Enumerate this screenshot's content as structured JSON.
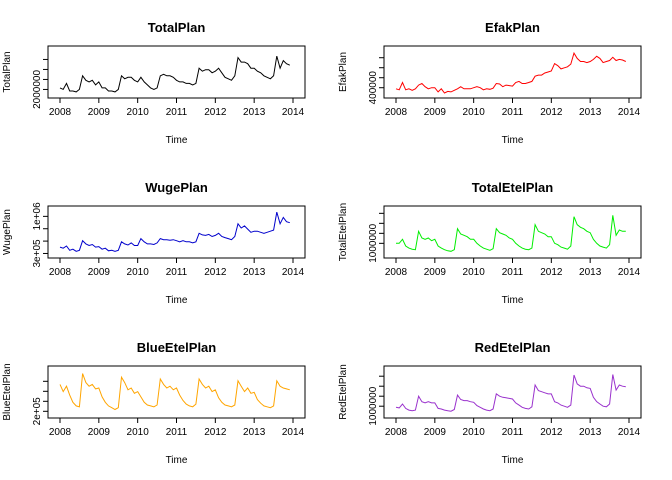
{
  "chart_data": [
    {
      "type": "line",
      "title": "TotalPlan",
      "xlabel": "Time",
      "ylabel": "TotalPlan",
      "color": "#000000",
      "xlim": [
        2008,
        2014
      ],
      "ylim": [
        1850000,
        3300000
      ],
      "xticks": [
        "2008",
        "2009",
        "2010",
        "2011",
        "2012",
        "2013",
        "2014"
      ],
      "yticks": [
        {
          "value": 2000000,
          "label": "2000000"
        }
      ],
      "x": [
        2008.0,
        2008.083,
        2008.167,
        2008.25,
        2008.333,
        2008.417,
        2008.5,
        2008.583,
        2008.667,
        2008.75,
        2008.833,
        2008.917,
        2009.0,
        2009.083,
        2009.167,
        2009.25,
        2009.333,
        2009.417,
        2009.5,
        2009.583,
        2009.667,
        2009.75,
        2009.833,
        2009.917,
        2010.0,
        2010.083,
        2010.167,
        2010.25,
        2010.333,
        2010.417,
        2010.5,
        2010.583,
        2010.667,
        2010.75,
        2010.833,
        2010.917,
        2011.0,
        2011.083,
        2011.167,
        2011.25,
        2011.333,
        2011.417,
        2011.5,
        2011.583,
        2011.667,
        2011.75,
        2011.833,
        2011.917,
        2012.0,
        2012.083,
        2012.167,
        2012.25,
        2012.333,
        2012.417,
        2012.5,
        2012.583,
        2012.667,
        2012.75,
        2012.833,
        2012.917,
        2013.0,
        2013.083,
        2013.167,
        2013.25,
        2013.333,
        2013.417,
        2013.5,
        2013.583,
        2013.667,
        2013.75,
        2013.833,
        2013.917
      ],
      "values": [
        2050000,
        2000000,
        2200000,
        1950000,
        1950000,
        1920000,
        2000000,
        2450000,
        2300000,
        2250000,
        2300000,
        2150000,
        2250000,
        2050000,
        2050000,
        1950000,
        1950000,
        1920000,
        2000000,
        2450000,
        2350000,
        2400000,
        2400000,
        2300000,
        2250000,
        2400000,
        2250000,
        2150000,
        2050000,
        2000000,
        2050000,
        2450000,
        2500000,
        2450000,
        2450000,
        2400000,
        2300000,
        2250000,
        2250000,
        2200000,
        2200000,
        2150000,
        2200000,
        2700000,
        2600000,
        2650000,
        2650000,
        2550000,
        2600000,
        2700000,
        2550000,
        2400000,
        2350000,
        2300000,
        2450000,
        3050000,
        2900000,
        2900000,
        2850000,
        2700000,
        2700000,
        2600000,
        2550000,
        2450000,
        2400000,
        2350000,
        2450000,
        3100000,
        2700000,
        2950000,
        2850000,
        2800000
      ]
    },
    {
      "type": "line",
      "title": "EfakPlan",
      "xlabel": "Time",
      "ylabel": "EfakPlan",
      "color": "#ff0000",
      "xlim": [
        2008,
        2014
      ],
      "ylim": [
        280000,
        1120000
      ],
      "xticks": [
        "2008",
        "2009",
        "2010",
        "2011",
        "2012",
        "2013",
        "2014"
      ],
      "yticks": [
        {
          "value": 400000,
          "label": "400000"
        }
      ],
      "x": [
        2008.0,
        2008.083,
        2008.167,
        2008.25,
        2008.333,
        2008.417,
        2008.5,
        2008.583,
        2008.667,
        2008.75,
        2008.833,
        2008.917,
        2009.0,
        2009.083,
        2009.167,
        2009.25,
        2009.333,
        2009.417,
        2009.5,
        2009.583,
        2009.667,
        2009.75,
        2009.833,
        2009.917,
        2010.0,
        2010.083,
        2010.167,
        2010.25,
        2010.333,
        2010.417,
        2010.5,
        2010.583,
        2010.667,
        2010.75,
        2010.833,
        2010.917,
        2011.0,
        2011.083,
        2011.167,
        2011.25,
        2011.333,
        2011.417,
        2011.5,
        2011.583,
        2011.667,
        2011.75,
        2011.833,
        2011.917,
        2012.0,
        2012.083,
        2012.167,
        2012.25,
        2012.333,
        2012.417,
        2012.5,
        2012.583,
        2012.667,
        2012.75,
        2012.833,
        2012.917,
        2013.0,
        2013.083,
        2013.167,
        2013.25,
        2013.333,
        2013.417,
        2013.5,
        2013.583,
        2013.667,
        2013.75,
        2013.833,
        2013.917
      ],
      "values": [
        380000,
        360000,
        500000,
        360000,
        380000,
        350000,
        380000,
        450000,
        480000,
        420000,
        380000,
        400000,
        400000,
        320000,
        380000,
        300000,
        330000,
        320000,
        350000,
        380000,
        420000,
        380000,
        380000,
        380000,
        400000,
        420000,
        400000,
        360000,
        380000,
        370000,
        390000,
        480000,
        470000,
        420000,
        450000,
        440000,
        430000,
        500000,
        520000,
        480000,
        480000,
        500000,
        520000,
        620000,
        640000,
        640000,
        680000,
        700000,
        720000,
        860000,
        820000,
        760000,
        780000,
        800000,
        850000,
        1060000,
        960000,
        900000,
        900000,
        880000,
        900000,
        940000,
        1000000,
        960000,
        880000,
        900000,
        920000,
        980000,
        920000,
        940000,
        930000,
        900000
      ]
    },
    {
      "type": "line",
      "title": "WugePlan",
      "xlabel": "Time",
      "ylabel": "WugePlan",
      "color": "#0000cc",
      "xlim": [
        2008,
        2014
      ],
      "ylim": [
        290000,
        1120000
      ],
      "xticks": [
        "2008",
        "2009",
        "2010",
        "2011",
        "2012",
        "2013",
        "2014"
      ],
      "yticks": [
        {
          "value": 300000,
          "label": "3e+05"
        },
        {
          "value": 1000000,
          "label": "1e+06"
        }
      ],
      "x": [
        2008.0,
        2008.083,
        2008.167,
        2008.25,
        2008.333,
        2008.417,
        2008.5,
        2008.583,
        2008.667,
        2008.75,
        2008.833,
        2008.917,
        2009.0,
        2009.083,
        2009.167,
        2009.25,
        2009.333,
        2009.417,
        2009.5,
        2009.583,
        2009.667,
        2009.75,
        2009.833,
        2009.917,
        2010.0,
        2010.083,
        2010.167,
        2010.25,
        2010.333,
        2010.417,
        2010.5,
        2010.583,
        2010.667,
        2010.75,
        2010.833,
        2010.917,
        2011.0,
        2011.083,
        2011.167,
        2011.25,
        2011.333,
        2011.417,
        2011.5,
        2011.583,
        2011.667,
        2011.75,
        2011.833,
        2011.917,
        2012.0,
        2012.083,
        2012.167,
        2012.25,
        2012.333,
        2012.417,
        2012.5,
        2012.583,
        2012.667,
        2012.75,
        2012.833,
        2012.917,
        2013.0,
        2013.083,
        2013.167,
        2013.25,
        2013.333,
        2013.417,
        2013.5,
        2013.583,
        2013.667,
        2013.75,
        2013.833,
        2013.917
      ],
      "values": [
        420000,
        400000,
        440000,
        360000,
        380000,
        340000,
        360000,
        540000,
        480000,
        450000,
        470000,
        420000,
        430000,
        380000,
        400000,
        350000,
        360000,
        340000,
        360000,
        520000,
        480000,
        460000,
        500000,
        450000,
        450000,
        580000,
        520000,
        480000,
        480000,
        470000,
        500000,
        580000,
        560000,
        560000,
        550000,
        560000,
        540000,
        520000,
        540000,
        520000,
        520000,
        500000,
        520000,
        680000,
        650000,
        640000,
        660000,
        620000,
        640000,
        680000,
        620000,
        600000,
        580000,
        560000,
        620000,
        860000,
        780000,
        820000,
        760000,
        700000,
        720000,
        720000,
        700000,
        680000,
        700000,
        720000,
        740000,
        1080000,
        860000,
        980000,
        900000,
        880000
      ]
    },
    {
      "type": "line",
      "title": "TotalEtelPlan",
      "xlabel": "Time",
      "ylabel": "TotalEtelPlan",
      "color": "#00ee00",
      "xlim": [
        2008,
        2014
      ],
      "ylim": [
        600000,
        2250000
      ],
      "xticks": [
        "2008",
        "2009",
        "2010",
        "2011",
        "2012",
        "2013",
        "2014"
      ],
      "yticks": [
        {
          "value": 1000000,
          "label": "1000000"
        }
      ],
      "x": [
        2008.0,
        2008.083,
        2008.167,
        2008.25,
        2008.333,
        2008.417,
        2008.5,
        2008.583,
        2008.667,
        2008.75,
        2008.833,
        2008.917,
        2009.0,
        2009.083,
        2009.167,
        2009.25,
        2009.333,
        2009.417,
        2009.5,
        2009.583,
        2009.667,
        2009.75,
        2009.833,
        2009.917,
        2010.0,
        2010.083,
        2010.167,
        2010.25,
        2010.333,
        2010.417,
        2010.5,
        2010.583,
        2010.667,
        2010.75,
        2010.833,
        2010.917,
        2011.0,
        2011.083,
        2011.167,
        2011.25,
        2011.333,
        2011.417,
        2011.5,
        2011.583,
        2011.667,
        2011.75,
        2011.833,
        2011.917,
        2012.0,
        2012.083,
        2012.167,
        2012.25,
        2012.333,
        2012.417,
        2012.5,
        2012.583,
        2012.667,
        2012.75,
        2012.833,
        2012.917,
        2013.0,
        2013.083,
        2013.167,
        2013.25,
        2013.333,
        2013.417,
        2013.5,
        2013.583,
        2013.667,
        2013.75,
        2013.833,
        2013.917
      ],
      "values": [
        1000000,
        1000000,
        1150000,
        900000,
        820000,
        780000,
        760000,
        1450000,
        1200000,
        1150000,
        1200000,
        1100000,
        1150000,
        900000,
        820000,
        760000,
        720000,
        700000,
        760000,
        1550000,
        1350000,
        1300000,
        1250000,
        1150000,
        1150000,
        1000000,
        900000,
        820000,
        780000,
        740000,
        800000,
        1550000,
        1400000,
        1350000,
        1300000,
        1200000,
        1150000,
        1000000,
        900000,
        820000,
        780000,
        760000,
        820000,
        1700000,
        1450000,
        1400000,
        1350000,
        1250000,
        1250000,
        1000000,
        950000,
        860000,
        820000,
        780000,
        900000,
        2000000,
        1700000,
        1600000,
        1550000,
        1450000,
        1400000,
        1150000,
        1000000,
        900000,
        860000,
        820000,
        950000,
        2050000,
        1300000,
        1500000,
        1450000,
        1450000
      ]
    },
    {
      "type": "line",
      "title": "BlueEtelPlan",
      "xlabel": "Time",
      "ylabel": "BlueEtelPlan",
      "color": "#ffa500",
      "xlim": [
        2008,
        2014
      ],
      "ylim": [
        170000,
        660000
      ],
      "xticks": [
        "2008",
        "2009",
        "2010",
        "2011",
        "2012",
        "2013",
        "2014"
      ],
      "yticks": [
        {
          "value": 200000,
          "label": "2e+05"
        }
      ],
      "x": [
        2008.0,
        2008.083,
        2008.167,
        2008.25,
        2008.333,
        2008.417,
        2008.5,
        2008.583,
        2008.667,
        2008.75,
        2008.833,
        2008.917,
        2009.0,
        2009.083,
        2009.167,
        2009.25,
        2009.333,
        2009.417,
        2009.5,
        2009.583,
        2009.667,
        2009.75,
        2009.833,
        2009.917,
        2010.0,
        2010.083,
        2010.167,
        2010.25,
        2010.333,
        2010.417,
        2010.5,
        2010.583,
        2010.667,
        2010.75,
        2010.833,
        2010.917,
        2011.0,
        2011.083,
        2011.167,
        2011.25,
        2011.333,
        2011.417,
        2011.5,
        2011.583,
        2011.667,
        2011.75,
        2011.833,
        2011.917,
        2012.0,
        2012.083,
        2012.167,
        2012.25,
        2012.333,
        2012.417,
        2012.5,
        2012.583,
        2012.667,
        2012.75,
        2012.833,
        2012.917,
        2013.0,
        2013.083,
        2013.167,
        2013.25,
        2013.333,
        2013.417,
        2013.5,
        2013.583,
        2013.667,
        2013.75,
        2013.833,
        2013.917
      ],
      "values": [
        500000,
        420000,
        480000,
        380000,
        300000,
        260000,
        250000,
        620000,
        520000,
        480000,
        500000,
        450000,
        460000,
        360000,
        300000,
        260000,
        240000,
        220000,
        240000,
        580000,
        520000,
        440000,
        460000,
        400000,
        420000,
        360000,
        300000,
        270000,
        260000,
        250000,
        270000,
        560000,
        500000,
        460000,
        480000,
        440000,
        460000,
        380000,
        320000,
        280000,
        260000,
        250000,
        280000,
        560000,
        500000,
        460000,
        480000,
        420000,
        440000,
        350000,
        300000,
        270000,
        260000,
        250000,
        270000,
        540000,
        480000,
        420000,
        460000,
        400000,
        410000,
        330000,
        290000,
        260000,
        250000,
        240000,
        260000,
        540000,
        480000,
        460000,
        450000,
        440000
      ]
    },
    {
      "type": "line",
      "title": "RedEtelPlan",
      "xlabel": "Time",
      "ylabel": "RedEtelPlan",
      "color": "#9a32cd",
      "xlim": [
        2008,
        2014
      ],
      "ylim": [
        860000,
        1650000
      ],
      "xticks": [
        "2008",
        "2009",
        "2010",
        "2011",
        "2012",
        "2013",
        "2014"
      ],
      "yticks": [
        {
          "value": 1000000,
          "label": "1000000"
        }
      ],
      "x": [
        2008.0,
        2008.083,
        2008.167,
        2008.25,
        2008.333,
        2008.417,
        2008.5,
        2008.583,
        2008.667,
        2008.75,
        2008.833,
        2008.917,
        2009.0,
        2009.083,
        2009.167,
        2009.25,
        2009.333,
        2009.417,
        2009.5,
        2009.583,
        2009.667,
        2009.75,
        2009.833,
        2009.917,
        2010.0,
        2010.083,
        2010.167,
        2010.25,
        2010.333,
        2010.417,
        2010.5,
        2010.583,
        2010.667,
        2010.75,
        2010.833,
        2010.917,
        2011.0,
        2011.083,
        2011.167,
        2011.25,
        2011.333,
        2011.417,
        2011.5,
        2011.583,
        2011.667,
        2011.75,
        2011.833,
        2011.917,
        2012.0,
        2012.083,
        2012.167,
        2012.25,
        2012.333,
        2012.417,
        2012.5,
        2012.583,
        2012.667,
        2012.75,
        2012.833,
        2012.917,
        2013.0,
        2013.083,
        2013.167,
        2013.25,
        2013.333,
        2013.417,
        2013.5,
        2013.583,
        2013.667,
        2013.75,
        2013.833,
        2013.917
      ],
      "values": [
        980000,
        970000,
        1040000,
        960000,
        930000,
        920000,
        930000,
        1180000,
        1080000,
        1060000,
        1080000,
        1060000,
        1060000,
        960000,
        950000,
        930000,
        920000,
        910000,
        940000,
        1200000,
        1120000,
        1100000,
        1100000,
        1080000,
        1070000,
        1010000,
        980000,
        950000,
        930000,
        920000,
        950000,
        1220000,
        1180000,
        1160000,
        1150000,
        1140000,
        1130000,
        1060000,
        1020000,
        980000,
        960000,
        950000,
        990000,
        1380000,
        1280000,
        1260000,
        1240000,
        1220000,
        1220000,
        1080000,
        1060000,
        1020000,
        1000000,
        980000,
        1020000,
        1560000,
        1400000,
        1360000,
        1360000,
        1330000,
        1320000,
        1160000,
        1080000,
        1040000,
        1000000,
        990000,
        1040000,
        1570000,
        1290000,
        1380000,
        1360000,
        1350000
      ]
    }
  ]
}
